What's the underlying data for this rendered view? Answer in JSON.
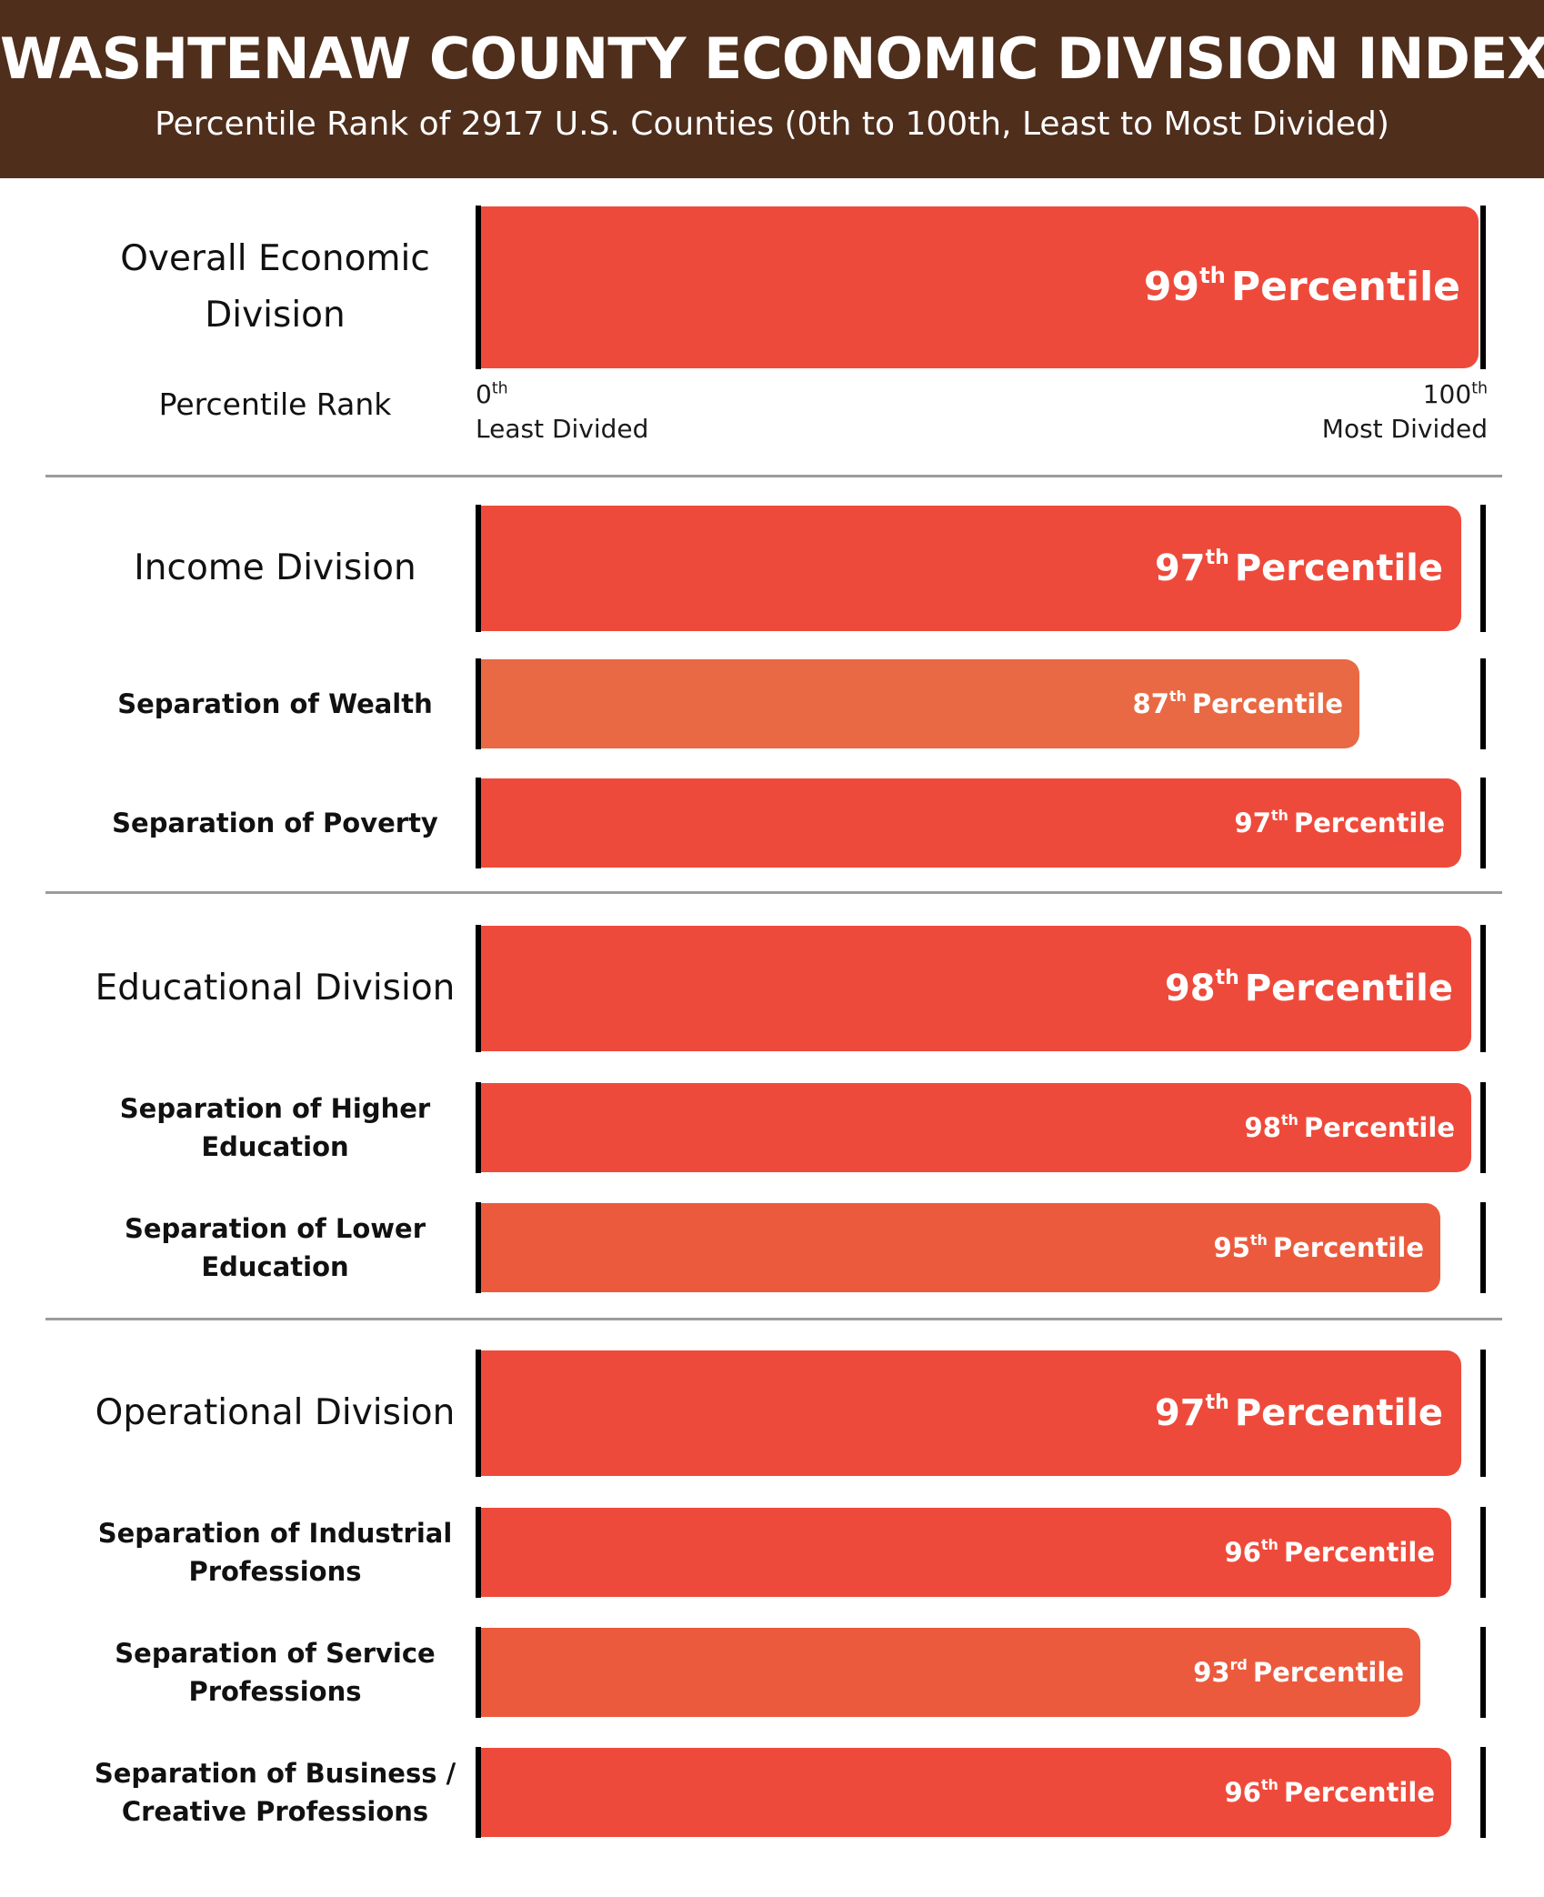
{
  "header": {
    "title": "WASHTENAW COUNTY ECONOMIC DIVISION INDEX",
    "subtitle": "Percentile Rank of 2917 U.S. Counties (0th to 100th, Least to Most Divided)"
  },
  "scale": {
    "row_label": "Percentile Rank",
    "min_num": "0",
    "min_suffix": "th",
    "min_text": "Least Divided",
    "max_num": "100",
    "max_suffix": "th",
    "max_text": "Most Divided"
  },
  "colors": {
    "header_bg": "#4f2e1b",
    "bar_high": "#ee4a3b",
    "bar_mid": "#ec5a3d",
    "bar_low": "#e86943"
  },
  "chart_data": {
    "type": "bar",
    "orientation": "horizontal",
    "title": "WASHTENAW COUNTY ECONOMIC DIVISION INDEX",
    "subtitle": "Percentile Rank of 2917 U.S. Counties (0th to 100th, Least to Most Divided)",
    "xlim": [
      0,
      100
    ],
    "grid": false,
    "categories": [
      "Overall Economic Division",
      "Income Division",
      "Separation of Wealth",
      "Separation of Poverty",
      "Educational Division",
      "Separation of Higher Education",
      "Separation of Lower Education",
      "Operational Division",
      "Separation of Industrial Professions",
      "Separation of Service Professions",
      "Separation of Business / Creative Professions"
    ],
    "values": [
      99,
      97,
      87,
      97,
      98,
      98,
      95,
      97,
      96,
      93,
      96
    ],
    "rows": [
      {
        "label": "Overall Economic\nDivision",
        "value": 99,
        "num": "99",
        "suffix": "th",
        "text": "Percentile",
        "level": "main",
        "color": "#ee4a3b"
      },
      {
        "label": "Income Division",
        "value": 97,
        "num": "97",
        "suffix": "th",
        "text": "Percentile",
        "level": "main",
        "color": "#ee4a3b"
      },
      {
        "label": "Separation of Wealth",
        "value": 87,
        "num": "87",
        "suffix": "th",
        "text": "Percentile",
        "level": "sub",
        "color": "#e86943"
      },
      {
        "label": "Separation of Poverty",
        "value": 97,
        "num": "97",
        "suffix": "th",
        "text": "Percentile",
        "level": "sub",
        "color": "#ee4a3b"
      },
      {
        "label": "Educational Division",
        "value": 98,
        "num": "98",
        "suffix": "th",
        "text": "Percentile",
        "level": "main",
        "color": "#ee4a3b"
      },
      {
        "label": "Separation of Higher\nEducation",
        "value": 98,
        "num": "98",
        "suffix": "th",
        "text": "Percentile",
        "level": "sub",
        "color": "#ee4a3b"
      },
      {
        "label": "Separation of Lower\nEducation",
        "value": 95,
        "num": "95",
        "suffix": "th",
        "text": "Percentile",
        "level": "sub",
        "color": "#ec5a3d"
      },
      {
        "label": "Operational Division",
        "value": 97,
        "num": "97",
        "suffix": "th",
        "text": "Percentile",
        "level": "main",
        "color": "#ee4a3b"
      },
      {
        "label": "Separation of Industrial\nProfessions",
        "value": 96,
        "num": "96",
        "suffix": "th",
        "text": "Percentile",
        "level": "sub",
        "color": "#ee4a3b"
      },
      {
        "label": "Separation of Service\nProfessions",
        "value": 93,
        "num": "93",
        "suffix": "rd",
        "text": "Percentile",
        "level": "sub",
        "color": "#ec5a3d"
      },
      {
        "label": "Separation of Business /\nCreative Professions",
        "value": 96,
        "num": "96",
        "suffix": "th",
        "text": "Percentile",
        "level": "sub",
        "color": "#ee4a3b"
      }
    ]
  }
}
